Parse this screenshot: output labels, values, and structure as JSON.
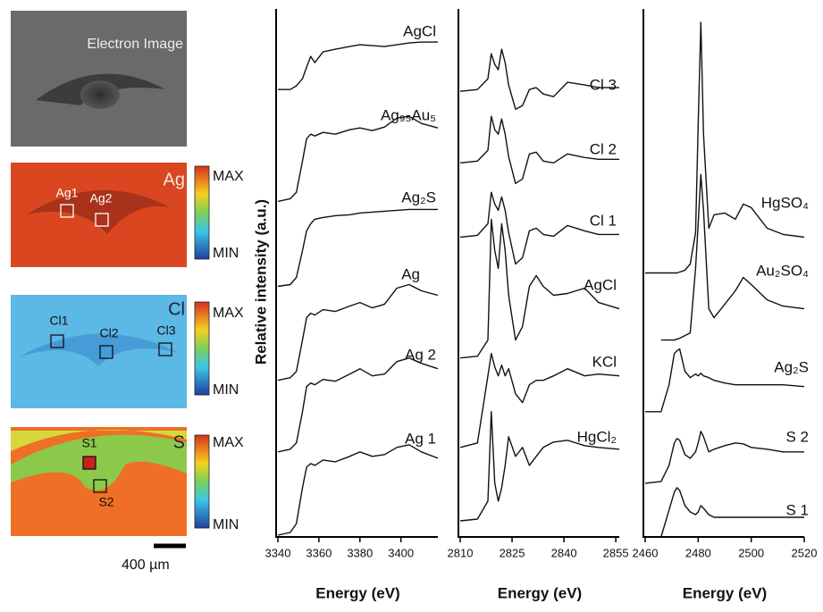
{
  "maps": [
    {
      "title": "Electron Image"
    },
    {
      "element": "Ag",
      "regions": [
        "Ag1",
        "Ag2"
      ],
      "max": "MAX",
      "min": "MIN"
    },
    {
      "element": "Cl",
      "regions": [
        "Cl1",
        "Cl2",
        "Cl3"
      ],
      "max": "MAX",
      "min": "MIN"
    },
    {
      "element": "S",
      "regions": [
        "S1",
        "S2"
      ],
      "max": "MAX",
      "min": "MIN"
    }
  ],
  "scale_bar": "400 µm",
  "chart_data": [
    {
      "type": "line",
      "xlabel": "Energy (eV)",
      "ylabel": "Relative intensity (a.u.)",
      "color": "#111111",
      "xlim": [
        3340,
        3418
      ],
      "xticks": [
        3340,
        3360,
        3380,
        3400
      ],
      "ylim": [
        0,
        590
      ],
      "x": [
        3340,
        3346,
        3349,
        3352,
        3354,
        3356,
        3358,
        3362,
        3368,
        3375,
        3380,
        3386,
        3392,
        3398,
        3404,
        3410,
        3418
      ],
      "series": [
        {
          "name": "AgCl",
          "values": [
            500,
            500,
            504,
            512,
            525,
            537,
            530,
            542,
            545,
            548,
            550,
            549,
            548,
            550,
            552,
            553,
            553
          ]
        },
        {
          "name": "Ag₉₅Au₅",
          "values": [
            375,
            378,
            385,
            420,
            445,
            450,
            448,
            452,
            450,
            455,
            457,
            454,
            458,
            468,
            470,
            462,
            457
          ]
        },
        {
          "name": "Ag₂S",
          "values": [
            280,
            282,
            290,
            320,
            342,
            350,
            355,
            357,
            359,
            360,
            362,
            363,
            364,
            365,
            366,
            366,
            366
          ]
        },
        {
          "name": "Ag",
          "values": [
            175,
            178,
            185,
            220,
            245,
            250,
            248,
            254,
            252,
            258,
            262,
            256,
            260,
            278,
            282,
            275,
            270
          ]
        },
        {
          "name": "Ag 2",
          "values": [
            95,
            98,
            105,
            140,
            168,
            172,
            170,
            176,
            174,
            182,
            188,
            180,
            182,
            196,
            200,
            194,
            188
          ]
        },
        {
          "name": "Ag 1",
          "values": [
            2,
            5,
            15,
            55,
            78,
            82,
            80,
            86,
            84,
            90,
            95,
            90,
            92,
            100,
            103,
            95,
            88
          ]
        }
      ]
    },
    {
      "type": "line",
      "xlabel": "Energy (eV)",
      "color": "#111111",
      "xlim": [
        2810,
        2856
      ],
      "xticks": [
        2810,
        2825,
        2840,
        2855
      ],
      "ylim": [
        0,
        590
      ],
      "x": [
        2810,
        2815,
        2818,
        2819,
        2820,
        2821,
        2822,
        2823,
        2824,
        2826,
        2828,
        2830,
        2832,
        2834,
        2837,
        2841,
        2846,
        2850,
        2856
      ],
      "series": [
        {
          "name": "Cl 3",
          "values": [
            498,
            500,
            512,
            540,
            528,
            522,
            545,
            530,
            505,
            478,
            482,
            500,
            502,
            495,
            492,
            508,
            505,
            502,
            502
          ]
        },
        {
          "name": "Cl 2",
          "values": [
            418,
            420,
            432,
            470,
            455,
            450,
            467,
            450,
            425,
            395,
            400,
            428,
            430,
            420,
            418,
            428,
            424,
            422,
            422
          ]
        },
        {
          "name": "Cl 1",
          "values": [
            335,
            337,
            350,
            385,
            372,
            365,
            380,
            365,
            340,
            305,
            312,
            342,
            345,
            338,
            336,
            348,
            342,
            338,
            338
          ]
        },
        {
          "name": "AgCl",
          "values": [
            200,
            202,
            220,
            355,
            320,
            300,
            350,
            320,
            270,
            220,
            235,
            280,
            292,
            280,
            270,
            272,
            278,
            262,
            255
          ]
        },
        {
          "name": "KCl",
          "values": [
            100,
            105,
            180,
            205,
            190,
            180,
            192,
            180,
            188,
            160,
            150,
            170,
            175,
            175,
            180,
            188,
            180,
            182,
            180
          ]
        },
        {
          "name": "HgCl₂",
          "values": [
            18,
            20,
            40,
            140,
            60,
            40,
            55,
            80,
            112,
            90,
            100,
            80,
            90,
            100,
            106,
            108,
            102,
            100,
            98
          ]
        }
      ]
    },
    {
      "type": "line",
      "xlabel": "Energy (eV)",
      "color": "#111111",
      "xlim": [
        2460,
        2520
      ],
      "xticks": [
        2460,
        2480,
        2500,
        2520
      ],
      "ylim": [
        0,
        590
      ],
      "x": [
        2460,
        2466,
        2469,
        2471,
        2472,
        2473,
        2475,
        2477,
        2479,
        2480,
        2481,
        2482,
        2484,
        2486,
        2490,
        2494,
        2497,
        2500,
        2506,
        2512,
        2520
      ],
      "series": [
        {
          "name": "HgSO₄",
          "values": [
            295,
            295,
            295,
            295,
            295,
            296,
            298,
            305,
            340,
            460,
            575,
            450,
            345,
            360,
            362,
            355,
            372,
            368,
            345,
            338,
            335
          ]
        },
        {
          "name": "Au₂SO₄",
          "values": [
            null,
            220,
            220,
            220,
            221,
            222,
            225,
            228,
            300,
            350,
            405,
            365,
            255,
            245,
            260,
            275,
            290,
            282,
            265,
            258,
            255
          ]
        },
        {
          "name": "Ag₂S",
          "values": [
            140,
            140,
            170,
            205,
            208,
            210,
            185,
            178,
            182,
            180,
            183,
            180,
            178,
            175,
            172,
            170,
            170,
            170,
            170,
            170,
            168
          ]
        },
        {
          "name": "S 2",
          "values": [
            60,
            62,
            80,
            105,
            110,
            108,
            92,
            88,
            95,
            105,
            118,
            112,
            95,
            98,
            102,
            105,
            104,
            100,
            98,
            95,
            95
          ]
        },
        {
          "name": "S 1",
          "values": [
            null,
            0,
            30,
            50,
            55,
            52,
            35,
            28,
            25,
            28,
            35,
            32,
            25,
            22,
            22,
            22,
            22,
            22,
            22,
            22,
            22
          ]
        }
      ]
    }
  ]
}
